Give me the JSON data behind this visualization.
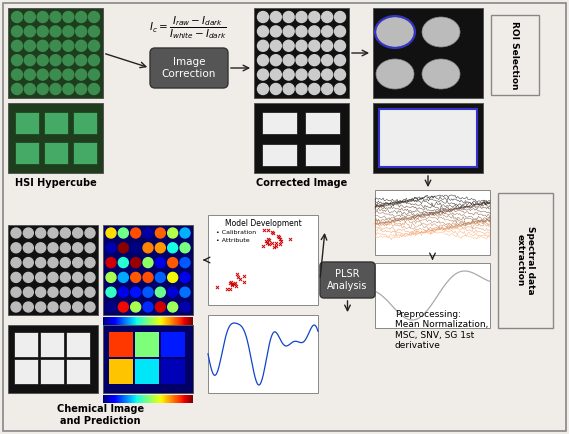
{
  "bg_color": "#f0ede8",
  "labels": {
    "hsi": "HSI Hypercube",
    "corrected": "Corrected Image",
    "roi": "ROI Selection",
    "spectral": "Spectral data\nextraction",
    "plsr": "PLSR\nAnalysis",
    "preprocessing": "Preprocessing:\nMean Normalization,\nMSC, SNV, SG 1st\nderivative",
    "chemical": "Chemical Image\nand Prediction",
    "image_correction": "Image\nCorrection",
    "model_dev": "Model Development"
  }
}
